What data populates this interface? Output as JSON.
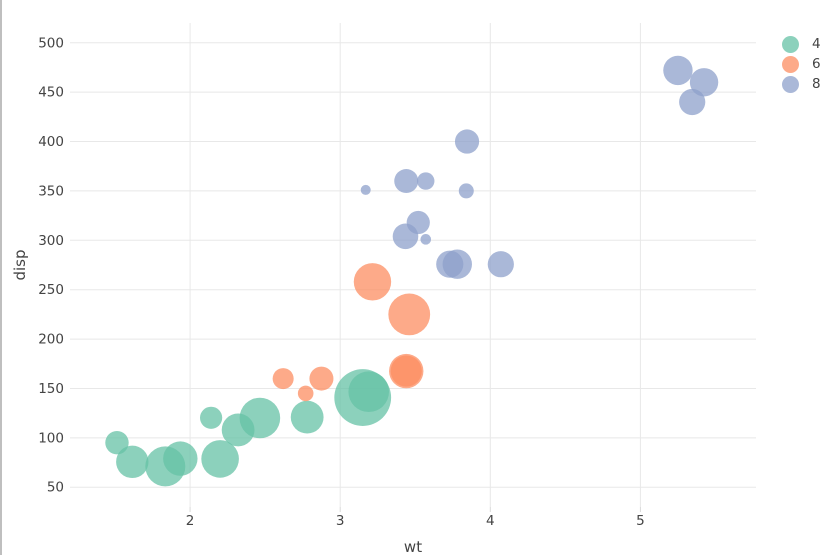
{
  "window": {
    "border_color": "#bfbfbf"
  },
  "chart_data": {
    "type": "scatter",
    "subtype": "bubble",
    "title": "",
    "xlabel": "wt",
    "ylabel": "disp",
    "x_ticks": [
      2,
      3,
      4,
      5
    ],
    "y_ticks": [
      50,
      100,
      150,
      200,
      250,
      300,
      350,
      400,
      450,
      500
    ],
    "xlim": [
      1.2,
      5.77
    ],
    "ylim": [
      30,
      520
    ],
    "grid": true,
    "background": "#ffffff",
    "gridline_color": "#e8e8e8",
    "tick_color": "#d9d9d9",
    "tick_label_color": "#444444",
    "marker_opacity": 0.75,
    "legend_position": "top-right",
    "legend": {
      "entries": [
        {
          "label": "4",
          "color": "#66c2a5"
        },
        {
          "label": "6",
          "color": "#fc8d62"
        },
        {
          "label": "8",
          "color": "#8da0cb"
        }
      ]
    },
    "series": [
      {
        "name": "4",
        "color": "#66c2a5",
        "points": [
          {
            "wt": 2.32,
            "disp": 108.0,
            "r": 16.4
          },
          {
            "wt": 3.19,
            "disp": 146.7,
            "r": 20.3
          },
          {
            "wt": 3.15,
            "disp": 140.8,
            "r": 28.4
          },
          {
            "wt": 2.2,
            "disp": 78.7,
            "r": 18.8
          },
          {
            "wt": 1.615,
            "disp": 75.7,
            "r": 16.2
          },
          {
            "wt": 1.835,
            "disp": 71.1,
            "r": 20.0
          },
          {
            "wt": 2.465,
            "disp": 120.1,
            "r": 20.3
          },
          {
            "wt": 1.935,
            "disp": 79.0,
            "r": 17.2
          },
          {
            "wt": 2.14,
            "disp": 120.3,
            "r": 11.1
          },
          {
            "wt": 1.513,
            "disp": 95.1,
            "r": 11.7
          },
          {
            "wt": 2.78,
            "disp": 121.0,
            "r": 16.4
          }
        ]
      },
      {
        "name": "6",
        "color": "#fc8d62",
        "points": [
          {
            "wt": 2.62,
            "disp": 160.0,
            "r": 10.5
          },
          {
            "wt": 2.875,
            "disp": 160.0,
            "r": 12.0
          },
          {
            "wt": 3.215,
            "disp": 258.0,
            "r": 18.7
          },
          {
            "wt": 3.46,
            "disp": 225.0,
            "r": 20.9
          },
          {
            "wt": 3.44,
            "disp": 167.6,
            "r": 15.6
          },
          {
            "wt": 3.44,
            "disp": 167.6,
            "r": 17.2
          },
          {
            "wt": 2.77,
            "disp": 145.0,
            "r": 7.8
          }
        ]
      },
      {
        "name": "8",
        "color": "#8da0cb",
        "points": [
          {
            "wt": 3.44,
            "disp": 360.0,
            "r": 12.0
          },
          {
            "wt": 3.57,
            "disp": 360.0,
            "r": 8.7
          },
          {
            "wt": 4.07,
            "disp": 275.8,
            "r": 13.1
          },
          {
            "wt": 3.73,
            "disp": 275.8,
            "r": 13.6
          },
          {
            "wt": 3.78,
            "disp": 275.8,
            "r": 14.7
          },
          {
            "wt": 5.25,
            "disp": 472.0,
            "r": 14.7
          },
          {
            "wt": 5.424,
            "disp": 460.0,
            "r": 14.2
          },
          {
            "wt": 5.345,
            "disp": 440.0,
            "r": 13.1
          },
          {
            "wt": 3.52,
            "disp": 318.0,
            "r": 11.6
          },
          {
            "wt": 3.435,
            "disp": 304.0,
            "r": 12.8
          },
          {
            "wt": 3.84,
            "disp": 350.0,
            "r": 7.5
          },
          {
            "wt": 3.845,
            "disp": 400.0,
            "r": 12.1
          },
          {
            "wt": 3.17,
            "disp": 351.0,
            "r": 5.0
          },
          {
            "wt": 3.57,
            "disp": 301.0,
            "r": 5.3
          }
        ]
      }
    ]
  }
}
